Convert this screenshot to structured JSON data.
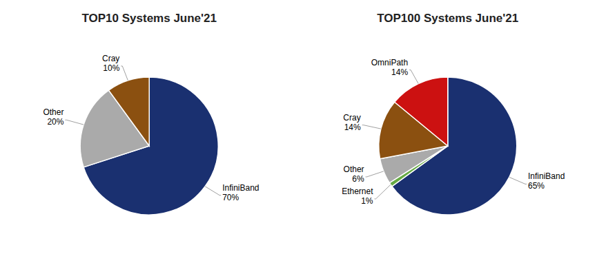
{
  "chart_data": [
    {
      "type": "pie",
      "title": "TOP10 Systems June'21",
      "categories": [
        "InfiniBand",
        "Other",
        "Cray"
      ],
      "values": [
        70,
        20,
        10
      ],
      "value_labels": [
        "70%",
        "20%",
        "10%"
      ],
      "colors": [
        "#1a3070",
        "#aaaaaa",
        "#8B5010"
      ],
      "data_labels": true
    },
    {
      "type": "pie",
      "title": "TOP100 Systems June'21",
      "categories": [
        "InfiniBand",
        "Ethernet",
        "Other",
        "Cray",
        "OmniPath"
      ],
      "values": [
        65,
        1,
        6,
        14,
        14
      ],
      "value_labels": [
        "65%",
        "1%",
        "6%",
        "14%",
        "14%"
      ],
      "colors": [
        "#1a3070",
        "#66aa44",
        "#aaaaaa",
        "#8B5010",
        "#cc1111"
      ],
      "data_labels": true
    }
  ]
}
